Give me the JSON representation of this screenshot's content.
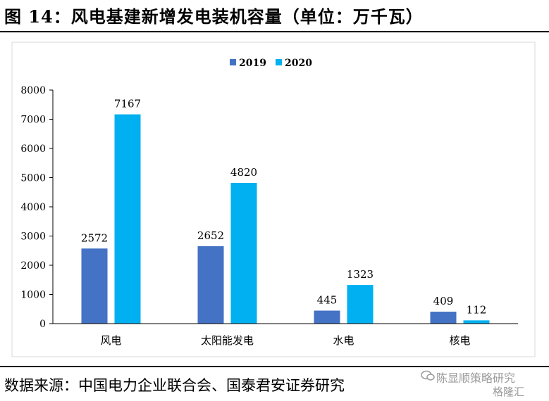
{
  "header": {
    "title": "图 14：风电基建新增发电装机容量（单位：万千瓦）"
  },
  "footer": {
    "source": "数据来源：中国电力企业联合会、国泰君安证券研究"
  },
  "watermark": {
    "line1": "陈显顺策略研究",
    "line2": "格隆汇"
  },
  "colors": {
    "series_2019": "#4472C4",
    "series_2020": "#00B0F0"
  },
  "chart_data": {
    "type": "bar",
    "categories": [
      "风电",
      "太阳能发电",
      "水电",
      "核电"
    ],
    "series": [
      {
        "name": "2019",
        "values": [
          2572,
          2652,
          445,
          409
        ]
      },
      {
        "name": "2020",
        "values": [
          7167,
          4820,
          1323,
          112
        ]
      }
    ],
    "ylim": [
      0,
      8000
    ],
    "yticks": [
      0,
      1000,
      2000,
      3000,
      4000,
      5000,
      6000,
      7000,
      8000
    ],
    "grid": false,
    "legend": "top-center"
  }
}
